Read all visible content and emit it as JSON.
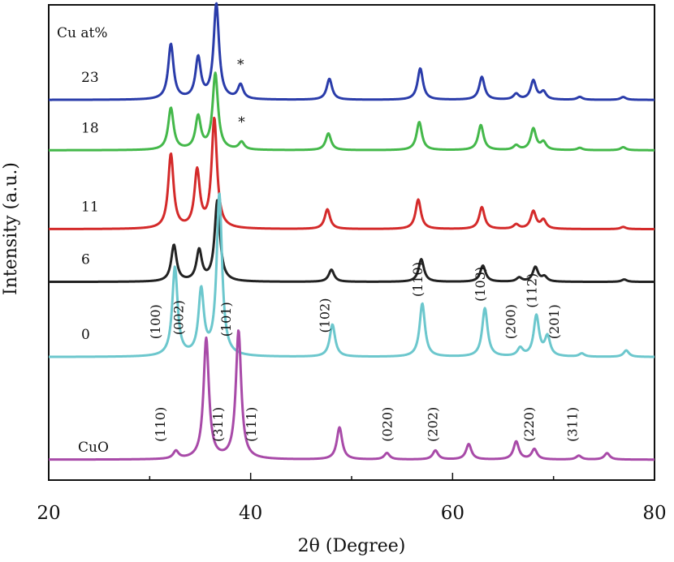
{
  "chart_data": {
    "type": "line",
    "title": "",
    "xlabel": "2θ (Degree)",
    "ylabel": "Intensity (a.u.)",
    "xlim": [
      20,
      80
    ],
    "xticks": [
      20,
      40,
      60,
      80
    ],
    "legend_title": "Cu at%",
    "series": [
      {
        "name": "23",
        "color": "#2a3caa",
        "baseline": 0.8,
        "scale": 0.2,
        "peaks": [
          [
            32.1,
            0.58
          ],
          [
            34.8,
            0.43
          ],
          [
            36.6,
            1.0
          ],
          [
            39.0,
            0.15
          ],
          [
            47.8,
            0.22
          ],
          [
            56.8,
            0.33
          ],
          [
            62.9,
            0.24
          ],
          [
            66.3,
            0.06
          ],
          [
            68.0,
            0.2
          ],
          [
            69.0,
            0.08
          ],
          [
            72.6,
            0.03
          ],
          [
            76.9,
            0.03
          ]
        ],
        "annotations": [
          {
            "text": "*",
            "x": 39.0
          }
        ]
      },
      {
        "name": "18",
        "color": "#44b84a",
        "baseline": 0.694,
        "scale": 0.16,
        "peaks": [
          [
            32.1,
            0.55
          ],
          [
            34.8,
            0.43
          ],
          [
            36.5,
            1.0
          ],
          [
            39.1,
            0.1
          ],
          [
            47.7,
            0.22
          ],
          [
            56.7,
            0.37
          ],
          [
            62.8,
            0.33
          ],
          [
            66.3,
            0.06
          ],
          [
            68.0,
            0.28
          ],
          [
            69.0,
            0.1
          ],
          [
            72.6,
            0.03
          ],
          [
            76.9,
            0.04
          ]
        ],
        "annotations": [
          {
            "text": "*",
            "x": 39.1
          }
        ]
      },
      {
        "name": "11",
        "color": "#d42a2a",
        "baseline": 0.528,
        "scale": 0.23,
        "peaks": [
          [
            32.1,
            0.68
          ],
          [
            34.7,
            0.52
          ],
          [
            36.4,
            1.0
          ],
          [
            47.6,
            0.18
          ],
          [
            56.6,
            0.27
          ],
          [
            62.9,
            0.2
          ],
          [
            66.3,
            0.04
          ],
          [
            68.0,
            0.16
          ],
          [
            69.0,
            0.08
          ],
          [
            76.9,
            0.02
          ]
        ],
        "annotations": []
      },
      {
        "name": "6",
        "color": "#222222",
        "baseline": 0.417,
        "scale": 0.17,
        "peaks": [
          [
            32.4,
            0.45
          ],
          [
            34.9,
            0.38
          ],
          [
            36.7,
            1.0
          ],
          [
            48.0,
            0.15
          ],
          [
            56.9,
            0.28
          ],
          [
            63.0,
            0.2
          ],
          [
            66.6,
            0.05
          ],
          [
            68.2,
            0.18
          ],
          [
            69.1,
            0.06
          ],
          [
            77.0,
            0.03
          ]
        ],
        "annotations": []
      },
      {
        "name": "0",
        "color": "#6cc7cd",
        "baseline": 0.259,
        "scale": 0.34,
        "peaks": [
          [
            32.5,
            0.55
          ],
          [
            35.1,
            0.4
          ],
          [
            36.9,
            1.0
          ],
          [
            48.1,
            0.2
          ],
          [
            57.0,
            0.33
          ],
          [
            63.2,
            0.3
          ],
          [
            66.7,
            0.05
          ],
          [
            68.3,
            0.25
          ],
          [
            69.4,
            0.12
          ],
          [
            72.8,
            0.02
          ],
          [
            77.2,
            0.04
          ]
        ],
        "annotations": [
          {
            "text": "(100)",
            "x": 31.0
          },
          {
            "text": "(002)",
            "x": 33.3
          },
          {
            "text": "(101)",
            "x": 38.0
          },
          {
            "text": "(102)",
            "x": 47.8
          },
          {
            "text": "(110)",
            "x": 57.0
          },
          {
            "text": "(103)",
            "x": 63.2
          },
          {
            "text": "(200)",
            "x": 66.2
          },
          {
            "text": "(112)",
            "x": 68.3
          },
          {
            "text": "(201)",
            "x": 70.5
          }
        ]
      },
      {
        "name": "CuO",
        "color": "#a84aa8",
        "baseline": 0.043,
        "scale": 0.27,
        "peaks": [
          [
            32.6,
            0.06
          ],
          [
            35.6,
            0.94
          ],
          [
            38.8,
            1.0
          ],
          [
            48.8,
            0.25
          ],
          [
            53.5,
            0.05
          ],
          [
            58.3,
            0.07
          ],
          [
            61.6,
            0.12
          ],
          [
            66.3,
            0.14
          ],
          [
            68.1,
            0.08
          ],
          [
            72.5,
            0.03
          ],
          [
            75.3,
            0.05
          ]
        ],
        "annotations": [
          {
            "text": "(110)",
            "x": 31.5
          },
          {
            "text": "(311)",
            "x": 37.2
          },
          {
            "text": "(111)",
            "x": 40.5
          },
          {
            "text": "(020)",
            "x": 54.0
          },
          {
            "text": "(202)",
            "x": 58.5
          },
          {
            "text": "(220)",
            "x": 68.0
          },
          {
            "text": "(311)",
            "x": 72.3
          }
        ]
      }
    ]
  }
}
